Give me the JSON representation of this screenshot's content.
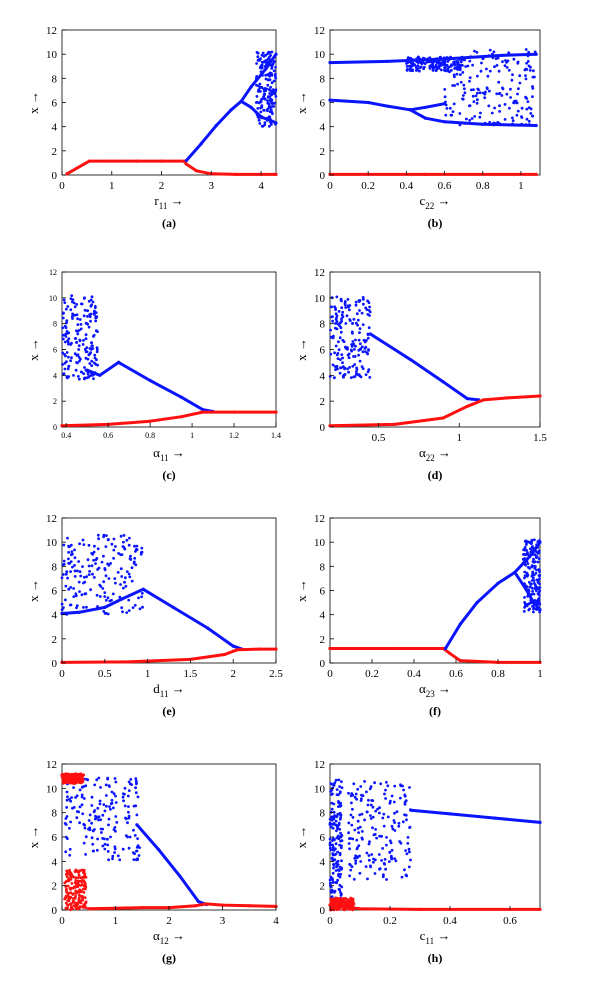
{
  "colors": {
    "upper": "#0a14ff",
    "lower": "#ff1010",
    "axis": "#000000"
  },
  "chart_data": [
    {
      "type": "scatter",
      "caption": "(a)",
      "xlabel": "r",
      "xsub": "11",
      "ylabel": "x",
      "arrow": "→",
      "xlim": [
        0,
        4.3
      ],
      "ylim": [
        0,
        12
      ],
      "xticks": [
        0,
        1,
        2,
        3,
        4
      ],
      "xtick_labels": [
        "0",
        "1",
        "2",
        "3",
        "4"
      ],
      "yticks": [
        0,
        2,
        4,
        6,
        8,
        10,
        12
      ],
      "ytick_labels": [
        "0",
        "2",
        "4",
        "6",
        "8",
        "10",
        "12"
      ],
      "series": [
        {
          "color": "lower",
          "points": [
            [
              0.1,
              0.1
            ],
            [
              0.55,
              1.15
            ],
            [
              1,
              1.15
            ],
            [
              1.5,
              1.15
            ],
            [
              2,
              1.15
            ],
            [
              2.45,
              1.15
            ],
            [
              2.5,
              0.9
            ],
            [
              2.7,
              0.35
            ],
            [
              3,
              0.1
            ],
            [
              3.5,
              0.05
            ],
            [
              4,
              0.05
            ],
            [
              4.3,
              0.05
            ]
          ]
        },
        {
          "color": "upper",
          "points": [
            [
              2.5,
              1.2
            ],
            [
              2.8,
              2.6
            ],
            [
              3.1,
              4.1
            ],
            [
              3.4,
              5.4
            ],
            [
              3.6,
              6.1
            ],
            [
              3.8,
              7.3
            ],
            [
              4.0,
              8.3
            ],
            [
              4.1,
              8.8
            ],
            [
              4.2,
              9.4
            ],
            [
              4.3,
              10
            ]
          ]
        },
        {
          "color": "upper",
          "points": [
            [
              3.6,
              6.1
            ],
            [
              3.8,
              5.6
            ],
            [
              4.0,
              4.8
            ],
            [
              4.2,
              4.5
            ],
            [
              4.3,
              4.3
            ]
          ]
        }
      ],
      "clouds": [
        {
          "color": "upper",
          "x": [
            3.9,
            4.3
          ],
          "y": [
            4,
            10.2
          ]
        }
      ]
    },
    {
      "type": "scatter",
      "caption": "(b)",
      "xlabel": "c",
      "xsub": "22",
      "ylabel": "x",
      "arrow": "→",
      "xlim": [
        0,
        1.1
      ],
      "ylim": [
        0,
        12
      ],
      "xticks": [
        0,
        0.2,
        0.4,
        0.6,
        0.8,
        1
      ],
      "xtick_labels": [
        "0",
        "0.2",
        "0.4",
        "0.6",
        "0.8",
        "1"
      ],
      "yticks": [
        0,
        2,
        4,
        6,
        8,
        10,
        12
      ],
      "ytick_labels": [
        "0",
        "2",
        "4",
        "6",
        "8",
        "10",
        "12"
      ],
      "series": [
        {
          "color": "lower",
          "points": [
            [
              0,
              0.05
            ],
            [
              0.5,
              0.05
            ],
            [
              1.08,
              0.05
            ]
          ]
        },
        {
          "color": "upper",
          "points": [
            [
              0,
              9.3
            ],
            [
              0.3,
              9.4
            ],
            [
              0.6,
              9.6
            ],
            [
              0.9,
              9.9
            ],
            [
              1.08,
              10
            ]
          ]
        },
        {
          "color": "upper",
          "points": [
            [
              0,
              6.2
            ],
            [
              0.2,
              6.0
            ],
            [
              0.3,
              5.7
            ],
            [
              0.42,
              5.4
            ],
            [
              0.5,
              5.6
            ],
            [
              0.6,
              5.9
            ]
          ]
        },
        {
          "color": "upper",
          "points": [
            [
              0.42,
              5.4
            ],
            [
              0.5,
              4.7
            ],
            [
              0.6,
              4.4
            ],
            [
              0.8,
              4.2
            ],
            [
              1.08,
              4.1
            ]
          ]
        }
      ],
      "clouds": [
        {
          "color": "upper",
          "x": [
            0.6,
            1.08
          ],
          "y": [
            4.1,
            10.4
          ]
        },
        {
          "color": "upper",
          "x": [
            0.4,
            0.7
          ],
          "y": [
            8.6,
            9.8
          ]
        }
      ]
    },
    {
      "type": "scatter",
      "caption": "(c)",
      "xlabel": "α",
      "xsub": "11",
      "ylabel": "x",
      "arrow": "→",
      "xlim": [
        0.38,
        1.4
      ],
      "ylim": [
        0,
        12
      ],
      "small_ticks": true,
      "xticks": [
        0.4,
        0.6,
        0.8,
        1,
        1.2,
        1.4
      ],
      "xtick_labels": [
        "0.4",
        "0.6",
        "0.8",
        "1",
        "1.2",
        "1.4"
      ],
      "yticks": [
        0,
        2,
        4,
        6,
        8,
        10,
        12
      ],
      "ytick_labels": [
        "0",
        "2",
        "4",
        "6",
        "8",
        "10",
        "12"
      ],
      "series": [
        {
          "color": "upper",
          "points": [
            [
              0.65,
              5.0
            ],
            [
              0.8,
              3.6
            ],
            [
              0.95,
              2.3
            ],
            [
              1.05,
              1.35
            ],
            [
              1.1,
              1.2
            ]
          ]
        },
        {
          "color": "lower",
          "points": [
            [
              0.38,
              0.1
            ],
            [
              0.6,
              0.2
            ],
            [
              0.8,
              0.45
            ],
            [
              0.95,
              0.8
            ],
            [
              1.05,
              1.15
            ],
            [
              1.2,
              1.15
            ],
            [
              1.4,
              1.15
            ]
          ]
        },
        {
          "color": "upper",
          "points": [
            [
              0.5,
              4.4
            ],
            [
              0.56,
              4.0
            ],
            [
              0.65,
              5.0
            ]
          ]
        }
      ],
      "clouds": [
        {
          "color": "upper",
          "x": [
            0.38,
            0.55
          ],
          "y": [
            3.7,
            10.2
          ]
        }
      ]
    },
    {
      "type": "scatter",
      "caption": "(d)",
      "xlabel": "α",
      "xsub": "22",
      "ylabel": "x",
      "arrow": "→",
      "xlim": [
        0.2,
        1.5
      ],
      "ylim": [
        0,
        12
      ],
      "xticks": [
        0.5,
        1,
        1.5
      ],
      "xtick_labels": [
        "0.5",
        "1",
        "1.5"
      ],
      "yticks": [
        0,
        2,
        4,
        6,
        8,
        10,
        12
      ],
      "ytick_labels": [
        "0",
        "2",
        "4",
        "6",
        "8",
        "10",
        "12"
      ],
      "series": [
        {
          "color": "upper",
          "points": [
            [
              0.45,
              7.2
            ],
            [
              0.7,
              5.2
            ],
            [
              0.9,
              3.5
            ],
            [
              1.05,
              2.2
            ],
            [
              1.12,
              2.1
            ]
          ]
        },
        {
          "color": "lower",
          "points": [
            [
              0.2,
              0.1
            ],
            [
              0.6,
              0.2
            ],
            [
              0.9,
              0.7
            ],
            [
              1.05,
              1.6
            ],
            [
              1.15,
              2.1
            ],
            [
              1.3,
              2.25
            ],
            [
              1.5,
              2.4
            ]
          ]
        }
      ],
      "clouds": [
        {
          "color": "upper",
          "x": [
            0.2,
            0.45
          ],
          "y": [
            3.8,
            10.1
          ]
        }
      ]
    },
    {
      "type": "scatter",
      "caption": "(e)",
      "xlabel": "d",
      "xsub": "11",
      "ylabel": "x",
      "arrow": "→",
      "xlim": [
        0,
        2.5
      ],
      "ylim": [
        0,
        12
      ],
      "xticks": [
        0,
        0.5,
        1,
        1.5,
        2,
        2.5
      ],
      "xtick_labels": [
        "0",
        "0.5",
        "1",
        "1.5",
        "2",
        "2.5"
      ],
      "yticks": [
        0,
        2,
        4,
        6,
        8,
        10,
        12
      ],
      "ytick_labels": [
        "0",
        "2",
        "4",
        "6",
        "8",
        "10",
        "12"
      ],
      "series": [
        {
          "color": "upper",
          "points": [
            [
              0.95,
              6.1
            ],
            [
              1.3,
              4.6
            ],
            [
              1.7,
              2.9
            ],
            [
              2.0,
              1.4
            ],
            [
              2.1,
              1.15
            ]
          ]
        },
        {
          "color": "upper",
          "points": [
            [
              0.95,
              6.1
            ],
            [
              0.7,
              5.3
            ],
            [
              0.5,
              4.6
            ],
            [
              0.2,
              4.2
            ],
            [
              0,
              4.1
            ]
          ]
        },
        {
          "color": "lower",
          "points": [
            [
              0,
              0.05
            ],
            [
              0.8,
              0.1
            ],
            [
              1.5,
              0.3
            ],
            [
              1.9,
              0.7
            ],
            [
              2.05,
              1.1
            ],
            [
              2.3,
              1.15
            ],
            [
              2.5,
              1.15
            ]
          ]
        }
      ],
      "clouds": [
        {
          "color": "upper",
          "x": [
            0,
            0.95
          ],
          "y": [
            4,
            10.6
          ]
        }
      ]
    },
    {
      "type": "scatter",
      "caption": "(f)",
      "xlabel": "α",
      "xsub": "23",
      "ylabel": "x",
      "arrow": "→",
      "xlim": [
        0,
        1
      ],
      "ylim": [
        0,
        12
      ],
      "xticks": [
        0,
        0.2,
        0.4,
        0.6,
        0.8,
        1
      ],
      "xtick_labels": [
        "0",
        "0.2",
        "0.4",
        "0.6",
        "0.8",
        "1"
      ],
      "yticks": [
        0,
        2,
        4,
        6,
        8,
        10,
        12
      ],
      "ytick_labels": [
        "0",
        "2",
        "4",
        "6",
        "8",
        "10",
        "12"
      ],
      "series": [
        {
          "color": "lower",
          "points": [
            [
              0,
              1.2
            ],
            [
              0.3,
              1.2
            ],
            [
              0.54,
              1.2
            ],
            [
              0.57,
              0.8
            ],
            [
              0.62,
              0.2
            ],
            [
              0.8,
              0.05
            ],
            [
              1,
              0.05
            ]
          ]
        },
        {
          "color": "upper",
          "points": [
            [
              0.55,
              1.2
            ],
            [
              0.62,
              3.2
            ],
            [
              0.7,
              5.0
            ],
            [
              0.8,
              6.6
            ],
            [
              0.88,
              7.5
            ],
            [
              0.95,
              8.8
            ],
            [
              1,
              10
            ]
          ]
        },
        {
          "color": "upper",
          "points": [
            [
              0.88,
              7.5
            ],
            [
              0.93,
              6.2
            ],
            [
              0.97,
              5.0
            ],
            [
              1,
              4.4
            ]
          ]
        }
      ],
      "clouds": [
        {
          "color": "upper",
          "x": [
            0.92,
            1
          ],
          "y": [
            4.2,
            10.2
          ]
        }
      ]
    },
    {
      "type": "scatter",
      "caption": "(g)",
      "xlabel": "α",
      "xsub": "12",
      "ylabel": "x",
      "arrow": "→",
      "xlim": [
        0,
        4
      ],
      "ylim": [
        0,
        12
      ],
      "xticks": [
        0,
        1,
        2,
        3,
        4
      ],
      "xtick_labels": [
        "0",
        "1",
        "2",
        "3",
        "4"
      ],
      "yticks": [
        0,
        2,
        4,
        6,
        8,
        10,
        12
      ],
      "ytick_labels": [
        "0",
        "2",
        "4",
        "6",
        "8",
        "10",
        "12"
      ],
      "series": [
        {
          "color": "upper",
          "points": [
            [
              1.4,
              7.0
            ],
            [
              1.8,
              5.0
            ],
            [
              2.2,
              2.8
            ],
            [
              2.55,
              0.7
            ],
            [
              2.7,
              0.45
            ]
          ]
        },
        {
          "color": "lower",
          "points": [
            [
              0,
              11.1
            ],
            [
              0.4,
              11.1
            ]
          ]
        },
        {
          "color": "lower",
          "points": [
            [
              0.5,
              0.1
            ],
            [
              1,
              0.15
            ],
            [
              1.5,
              0.2
            ],
            [
              2,
              0.2
            ],
            [
              2.5,
              0.35
            ],
            [
              2.7,
              0.5
            ],
            [
              3,
              0.4
            ],
            [
              3.5,
              0.35
            ],
            [
              4,
              0.3
            ]
          ]
        }
      ],
      "clouds": [
        {
          "color": "upper",
          "x": [
            0.05,
            1.45
          ],
          "y": [
            4.1,
            11
          ]
        },
        {
          "color": "lower",
          "x": [
            0,
            0.4
          ],
          "y": [
            10.4,
            11.2
          ]
        },
        {
          "color": "lower",
          "x": [
            0.05,
            0.45
          ],
          "y": [
            0,
            3.3
          ]
        }
      ]
    },
    {
      "type": "scatter",
      "caption": "(h)",
      "xlabel": "c",
      "xsub": "11",
      "ylabel": "x",
      "arrow": "→",
      "xlim": [
        0,
        0.7
      ],
      "ylim": [
        0,
        12
      ],
      "xticks": [
        0,
        0.2,
        0.4,
        0.6
      ],
      "xtick_labels": [
        "0",
        "0.2",
        "0.4",
        "0.6"
      ],
      "yticks": [
        0,
        2,
        4,
        6,
        8,
        10,
        12
      ],
      "ytick_labels": [
        "0",
        "2",
        "4",
        "6",
        "8",
        "10",
        "12"
      ],
      "series": [
        {
          "color": "upper",
          "points": [
            [
              0.27,
              8.2
            ],
            [
              0.4,
              7.9
            ],
            [
              0.55,
              7.55
            ],
            [
              0.7,
              7.2
            ]
          ]
        },
        {
          "color": "lower",
          "points": [
            [
              0,
              0.4
            ],
            [
              0.1,
              0.1
            ],
            [
              0.3,
              0.05
            ],
            [
              0.7,
              0.05
            ]
          ]
        }
      ],
      "clouds": [
        {
          "color": "upper",
          "x": [
            0.06,
            0.27
          ],
          "y": [
            2.5,
            10.6
          ]
        },
        {
          "color": "upper",
          "x": [
            0,
            0.04
          ],
          "y": [
            0.2,
            10.7
          ]
        },
        {
          "color": "lower",
          "x": [
            0,
            0.08
          ],
          "y": [
            0,
            1.0
          ]
        }
      ]
    }
  ]
}
